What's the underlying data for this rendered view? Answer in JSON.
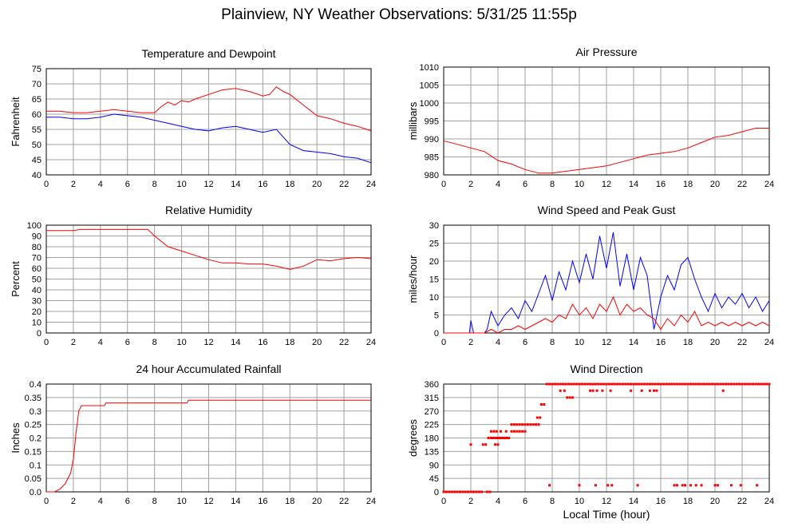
{
  "page": {
    "title": "Plainview, NY Weather Observations: 5/31/25 11:55p",
    "xaxis_label": "Local Time (hour)"
  },
  "colors": {
    "red": "#ff0000",
    "blue": "#0000ff",
    "grid": "#a0a0a0",
    "frame": "#000000"
  },
  "chart_data": [
    {
      "id": "temp",
      "type": "line",
      "title": "Temperature and Dewpoint",
      "ylabel": "Fahrenheit",
      "xlim": [
        0,
        24
      ],
      "ylim": [
        40,
        75
      ],
      "xticks": [
        0,
        2,
        4,
        6,
        8,
        10,
        12,
        14,
        16,
        18,
        20,
        22,
        24
      ],
      "yticks": [
        40,
        45,
        50,
        55,
        60,
        65,
        70,
        75
      ],
      "grid": true,
      "series": [
        {
          "color": "#ff0000",
          "x": [
            0,
            1,
            2,
            3,
            4,
            5,
            6,
            7,
            8,
            8.5,
            9,
            9.5,
            10,
            10.5,
            11,
            12,
            13,
            14,
            15,
            16,
            16.5,
            17,
            17.5,
            18,
            19,
            20,
            21,
            22,
            23,
            24
          ],
          "y": [
            61,
            61,
            60.5,
            60.5,
            61,
            61.5,
            61,
            60.5,
            60.5,
            62.5,
            64,
            63,
            64.5,
            64,
            65,
            66.5,
            68,
            68.5,
            67.5,
            66,
            66.5,
            69,
            67.5,
            66.5,
            63,
            59.5,
            58.5,
            57,
            56,
            54.5
          ]
        },
        {
          "color": "#0000ff",
          "x": [
            0,
            1,
            2,
            3,
            4,
            5,
            6,
            7,
            8,
            9,
            10,
            11,
            12,
            13,
            14,
            15,
            16,
            17,
            18,
            19,
            20,
            21,
            22,
            23,
            24
          ],
          "y": [
            59,
            59,
            58.5,
            58.5,
            59,
            60,
            59.5,
            59,
            58,
            57,
            56,
            55,
            54.5,
            55.5,
            56,
            55,
            54,
            55,
            50,
            48,
            47.5,
            47,
            46,
            45.5,
            44
          ]
        }
      ]
    },
    {
      "id": "pressure",
      "type": "line",
      "title": "Air Pressure",
      "ylabel": "millibars",
      "xlim": [
        0,
        24
      ],
      "ylim": [
        980,
        1010
      ],
      "xticks": [
        0,
        2,
        4,
        6,
        8,
        10,
        12,
        14,
        16,
        18,
        20,
        22,
        24
      ],
      "yticks": [
        980,
        985,
        990,
        995,
        1000,
        1005,
        1010
      ],
      "grid": true,
      "series": [
        {
          "color": "#ff0000",
          "x": [
            0,
            1,
            2,
            3,
            4,
            5,
            6,
            7,
            8,
            9,
            10,
            11,
            12,
            13,
            14,
            15,
            16,
            17,
            18,
            19,
            20,
            21,
            22,
            23,
            24
          ],
          "y": [
            989.5,
            988.5,
            987.5,
            986.5,
            984,
            983,
            981.5,
            980.5,
            980.5,
            981,
            981.5,
            982,
            982.5,
            983.5,
            984.5,
            985.5,
            986,
            986.5,
            987.5,
            989,
            990.5,
            991,
            992,
            993,
            993
          ]
        }
      ]
    },
    {
      "id": "humidity",
      "type": "line",
      "title": "Relative Humidity",
      "ylabel": "Percent",
      "xlim": [
        0,
        24
      ],
      "ylim": [
        0,
        100
      ],
      "xticks": [
        0,
        2,
        4,
        6,
        8,
        10,
        12,
        14,
        16,
        18,
        20,
        22,
        24
      ],
      "yticks": [
        0,
        10,
        20,
        30,
        40,
        50,
        60,
        70,
        80,
        90,
        100
      ],
      "grid": true,
      "series": [
        {
          "color": "#ff0000",
          "x": [
            0,
            1,
            2,
            2.5,
            4,
            6,
            7.5,
            8,
            9,
            10,
            11,
            12,
            13,
            14,
            15,
            16,
            17,
            18,
            19,
            20,
            21,
            22,
            23,
            24
          ],
          "y": [
            95,
            95,
            95,
            96,
            96,
            96,
            96,
            90,
            80,
            76,
            72,
            68,
            65,
            65,
            64,
            64,
            62,
            59,
            62,
            68,
            67,
            69,
            70,
            69
          ]
        }
      ]
    },
    {
      "id": "wind",
      "type": "line",
      "title": "Wind Speed and Peak Gust",
      "ylabel": "miles/hour",
      "xlim": [
        0,
        24
      ],
      "ylim": [
        0,
        30
      ],
      "xticks": [
        0,
        2,
        4,
        6,
        8,
        10,
        12,
        14,
        16,
        18,
        20,
        22,
        24
      ],
      "yticks": [
        0,
        5,
        10,
        15,
        20,
        25,
        30
      ],
      "grid": true,
      "series": [
        {
          "color": "#0000ff",
          "x": [
            0,
            1,
            1.9,
            2,
            2.2,
            3,
            3.2,
            3.5,
            4,
            4.5,
            5,
            5.5,
            6,
            6.5,
            7,
            7.5,
            8,
            8.5,
            9,
            9.5,
            10,
            10.5,
            11,
            11.5,
            12,
            12.5,
            13,
            13.5,
            14,
            14.5,
            15,
            15.5,
            16,
            16.5,
            17,
            17.5,
            18,
            18.5,
            19,
            19.5,
            20,
            20.5,
            21,
            21.5,
            22,
            22.5,
            23,
            23.5,
            24
          ],
          "y": [
            0,
            0,
            0,
            3.5,
            0,
            0,
            1,
            6,
            2,
            5,
            7,
            4,
            9,
            6,
            11,
            16,
            9,
            17,
            12,
            20,
            14,
            22,
            15,
            27,
            18,
            28,
            13,
            22,
            12,
            21,
            16,
            1,
            10,
            16,
            12,
            19,
            21,
            15,
            10,
            6,
            11,
            7,
            10,
            8,
            11,
            7,
            10,
            6,
            9
          ]
        },
        {
          "color": "#ff0000",
          "x": [
            0,
            1,
            2,
            3,
            3.5,
            4,
            4.5,
            5,
            5.5,
            6,
            6.5,
            7,
            7.5,
            8,
            8.5,
            9,
            9.5,
            10,
            10.5,
            11,
            11.5,
            12,
            12.5,
            13,
            13.5,
            14,
            14.5,
            15,
            15.5,
            16,
            16.5,
            17,
            17.5,
            18,
            18.5,
            19,
            19.5,
            20,
            20.5,
            21,
            21.5,
            22,
            22.5,
            23,
            23.5,
            24
          ],
          "y": [
            0,
            0,
            0,
            0,
            1,
            0,
            1,
            1,
            2,
            1,
            2,
            3,
            4,
            3,
            5,
            4,
            8,
            5,
            7,
            4,
            8,
            6,
            10,
            5,
            8,
            6,
            7,
            5,
            4,
            1,
            4,
            2,
            5,
            3,
            6,
            2,
            3,
            2,
            3,
            2,
            3,
            2,
            3,
            2,
            3,
            2
          ]
        }
      ]
    },
    {
      "id": "rain",
      "type": "line",
      "title": "24 hour Accumulated Rainfall",
      "ylabel": "Inches",
      "xlim": [
        0,
        24
      ],
      "ylim": [
        0,
        0.4
      ],
      "xticks": [
        0,
        2,
        4,
        6,
        8,
        10,
        12,
        14,
        16,
        18,
        20,
        22,
        24
      ],
      "yticks": [
        0,
        0.05,
        0.1,
        0.15,
        0.2,
        0.25,
        0.3,
        0.35,
        0.4
      ],
      "ytick_labels": [
        "0.0",
        "0.05",
        "0.1",
        "0.15",
        "0.2",
        "0.25",
        "0.3",
        "0.35",
        "0.4"
      ],
      "grid": true,
      "series": [
        {
          "color": "#ff0000",
          "x": [
            0,
            0.6,
            1.0,
            1.4,
            1.8,
            2.0,
            2.2,
            2.4,
            2.6,
            2.8,
            3.0,
            3.5,
            4.0,
            4.3,
            4.4,
            6,
            8,
            10,
            10.4,
            10.5,
            12,
            14,
            16,
            18,
            20,
            22,
            24
          ],
          "y": [
            0,
            0,
            0.01,
            0.03,
            0.07,
            0.12,
            0.22,
            0.3,
            0.32,
            0.32,
            0.32,
            0.32,
            0.32,
            0.32,
            0.33,
            0.33,
            0.33,
            0.33,
            0.33,
            0.34,
            0.34,
            0.34,
            0.34,
            0.34,
            0.34,
            0.34,
            0.34
          ]
        }
      ]
    },
    {
      "id": "direction",
      "type": "scatter",
      "title": "Wind Direction",
      "ylabel": "degrees",
      "xlabel": "Local Time (hour)",
      "xlim": [
        0,
        24
      ],
      "ylim": [
        0,
        360
      ],
      "xticks": [
        0,
        2,
        4,
        6,
        8,
        10,
        12,
        14,
        16,
        18,
        20,
        22,
        24
      ],
      "yticks": [
        0,
        45,
        90,
        135,
        180,
        225,
        270,
        315,
        360
      ],
      "grid": true,
      "series": [
        {
          "color": "#ff0000",
          "x": [
            0,
            0.2,
            0.4,
            0.6,
            0.8,
            1,
            1.2,
            1.4,
            1.6,
            1.8,
            2.0,
            2.2,
            2.4,
            2.6,
            2.8,
            3.2,
            3.4,
            2.0,
            2.9,
            3.1,
            3.3,
            3.5,
            3.6,
            3.7,
            3.8,
            3.9,
            4.0,
            4.1,
            4.2,
            4.3,
            4.4,
            4.5,
            4.6,
            4.7,
            4.8,
            3.8,
            4.0,
            3.5,
            3.7,
            3.9,
            4.2,
            4.6,
            5.0,
            5.2,
            5.4,
            5.6,
            5.8,
            6.0,
            5.0,
            5.2,
            5.4,
            5.6,
            5.8,
            6.0,
            6.2,
            6.4,
            6.6,
            6.8,
            7.0,
            6.9,
            7.1,
            7.2,
            7.4,
            7.6,
            7.8,
            8.0,
            8.2,
            8.4,
            8.6,
            8.8,
            9.0,
            9.2,
            9.4,
            9.6,
            9.8,
            10.0,
            10.2,
            10.4,
            10.6,
            10.8,
            11.0,
            11.2,
            11.4,
            11.6,
            11.8,
            12.0,
            12.2,
            12.4,
            12.6,
            12.8,
            13.0,
            13.2,
            13.4,
            13.6,
            13.8,
            14.0,
            14.2,
            14.4,
            14.6,
            14.8,
            15.0,
            15.2,
            15.4,
            15.6,
            15.8,
            16.0,
            16.2,
            16.4,
            16.6,
            16.8,
            17.0,
            17.2,
            17.4,
            17.6,
            17.8,
            18.0,
            18.2,
            18.4,
            18.6,
            18.8,
            19.0,
            19.2,
            19.4,
            19.6,
            19.8,
            20.0,
            20.2,
            20.4,
            20.6,
            20.8,
            21.0,
            21.2,
            21.4,
            21.6,
            21.8,
            22.0,
            22.2,
            22.4,
            22.6,
            22.8,
            23.0,
            23.2,
            23.4,
            23.6,
            23.8,
            24.0,
            8.6,
            8.9,
            9.1,
            9.3,
            9.5,
            10.8,
            11.0,
            11.3,
            11.7,
            12.3,
            13.8,
            14.6,
            15.2,
            15.5,
            15.7,
            20.6,
            7.8,
            10.0,
            11.2,
            12.1,
            12.4,
            14.3,
            17.0,
            17.2,
            17.6,
            17.8,
            18.2,
            18.6,
            19.0,
            20.0,
            20.2,
            21.2,
            21.9,
            23.1
          ],
          "y": [
            0,
            0,
            0,
            0,
            0,
            0,
            0,
            0,
            0,
            0,
            0,
            0,
            0,
            0,
            0,
            0,
            0,
            158,
            158,
            158,
            180,
            180,
            180,
            180,
            180,
            180,
            180,
            180,
            180,
            180,
            180,
            180,
            180,
            180,
            180,
            158,
            158,
            202,
            202,
            202,
            202,
            202,
            202,
            202,
            202,
            202,
            202,
            202,
            225,
            225,
            225,
            225,
            225,
            225,
            225,
            225,
            225,
            225,
            225,
            248,
            248,
            292,
            292,
            360,
            360,
            360,
            360,
            360,
            360,
            360,
            360,
            360,
            360,
            360,
            360,
            360,
            360,
            360,
            360,
            360,
            360,
            360,
            360,
            360,
            360,
            360,
            360,
            360,
            360,
            360,
            360,
            360,
            360,
            360,
            360,
            360,
            360,
            360,
            360,
            360,
            360,
            360,
            360,
            360,
            360,
            360,
            360,
            360,
            360,
            360,
            360,
            360,
            360,
            360,
            360,
            360,
            360,
            360,
            360,
            360,
            360,
            360,
            360,
            360,
            360,
            360,
            360,
            360,
            360,
            360,
            360,
            360,
            360,
            360,
            360,
            360,
            360,
            360,
            360,
            360,
            360,
            360,
            360,
            360,
            360,
            360,
            338,
            338,
            315,
            315,
            315,
            338,
            338,
            338,
            338,
            338,
            338,
            338,
            338,
            338,
            338,
            338,
            22,
            22,
            22,
            22,
            22,
            22,
            22,
            22,
            22,
            22,
            22,
            22,
            22,
            22,
            22,
            22,
            22,
            22
          ]
        }
      ]
    }
  ]
}
